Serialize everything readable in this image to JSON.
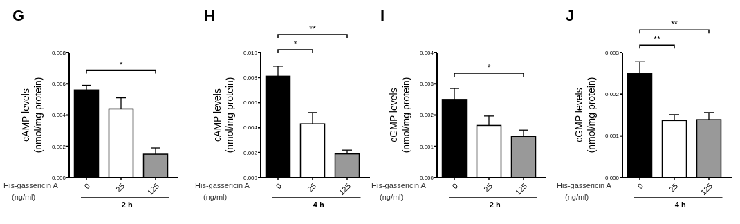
{
  "chart_data": [
    {
      "type": "bar",
      "title": "G",
      "ylabel": "cAMP levels (nmol/mg protein)",
      "xlabel": "2 h",
      "categories": [
        "0",
        "25",
        "125"
      ],
      "values": [
        0.0056,
        0.0044,
        0.0015
      ],
      "errors": [
        [
          0.0056,
          0.0059
        ],
        [
          0.0044,
          0.0051
        ],
        [
          0.0015,
          0.0019
        ]
      ],
      "colors": [
        "#000000",
        "#ffffff",
        "#999999"
      ],
      "ylim": [
        0,
        0.008
      ],
      "yticks": [
        {
          "value": 0,
          "label": "0.000"
        },
        {
          "value": 0.002,
          "label": "0.002"
        },
        {
          "value": 0.004,
          "label": "0.004"
        },
        {
          "value": 0.006,
          "label": "0.006"
        },
        {
          "value": 0.008,
          "label": "0.008"
        }
      ],
      "annotations": [
        "*",
        "His-gassericin A",
        "(ng/ml)"
      ]
    },
    {
      "type": "bar",
      "title": "H",
      "ylabel": "cAMP levels (nmol/mg protein)",
      "xlabel": "4 h",
      "categories": [
        "0",
        "25",
        "125"
      ],
      "values": [
        0.0081,
        0.0043,
        0.0019
      ],
      "errors": [
        [
          0.0081,
          0.0089
        ],
        [
          0.0043,
          0.0052
        ],
        [
          0.0019,
          0.0022
        ]
      ],
      "colors": [
        "#000000",
        "#ffffff",
        "#999999"
      ],
      "ylim": [
        0,
        0.01
      ],
      "yticks": [
        {
          "value": 0,
          "label": "0.000"
        },
        {
          "value": 0.002,
          "label": "0.002"
        },
        {
          "value": 0.004,
          "label": "0.004"
        },
        {
          "value": 0.006,
          "label": "0.006"
        },
        {
          "value": 0.008,
          "label": "0.008"
        },
        {
          "value": 0.01,
          "label": "0.010"
        }
      ],
      "annotations": [
        "*",
        "**",
        "His-gassericin A",
        "(ng/ml)"
      ]
    },
    {
      "type": "bar",
      "title": "I",
      "ylabel": "cGMP levels (nmol/mg protein)",
      "xlabel": "2 h",
      "categories": [
        "0",
        "25",
        "125"
      ],
      "values": [
        0.0025,
        0.00167,
        0.00132
      ],
      "errors": [
        [
          0.0025,
          0.00285
        ],
        [
          0.00167,
          0.00197
        ],
        [
          0.00132,
          0.00152
        ]
      ],
      "colors": [
        "#000000",
        "#ffffff",
        "#999999"
      ],
      "ylim": [
        0,
        0.004
      ],
      "yticks": [
        {
          "value": 0,
          "label": "0.000"
        },
        {
          "value": 0.001,
          "label": "0.001"
        },
        {
          "value": 0.002,
          "label": "0.002"
        },
        {
          "value": 0.003,
          "label": "0.003"
        },
        {
          "value": 0.004,
          "label": "0.004"
        }
      ],
      "annotations": [
        "*",
        "His-gassericin A",
        "(ng/ml)"
      ]
    },
    {
      "type": "bar",
      "title": "J",
      "ylabel": "cGMP levels (nmol/mg protein)",
      "xlabel": "4 h",
      "categories": [
        "0",
        "25",
        "125"
      ],
      "values": [
        0.0025,
        0.00137,
        0.00139
      ],
      "errors": [
        [
          0.0025,
          0.00278
        ],
        [
          0.00137,
          0.00151
        ],
        [
          0.00139,
          0.00156
        ]
      ],
      "colors": [
        "#000000",
        "#ffffff",
        "#999999"
      ],
      "ylim": [
        0,
        0.003
      ],
      "yticks": [
        {
          "value": 0,
          "label": "0.000"
        },
        {
          "value": 0.001,
          "label": "0.001"
        },
        {
          "value": 0.002,
          "label": "0.002"
        },
        {
          "value": 0.003,
          "label": "0.003"
        }
      ],
      "annotations": [
        "**",
        "**",
        "His-gassericin A",
        "(ng/ml)"
      ]
    }
  ]
}
